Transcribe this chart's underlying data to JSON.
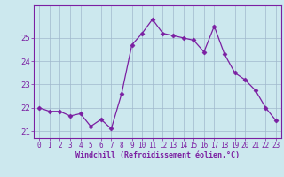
{
  "hours": [
    0,
    1,
    2,
    3,
    4,
    5,
    6,
    7,
    8,
    9,
    10,
    11,
    12,
    13,
    14,
    15,
    16,
    17,
    18,
    19,
    20,
    21,
    22,
    23
  ],
  "values": [
    22.0,
    21.85,
    21.85,
    21.65,
    21.75,
    21.2,
    21.5,
    21.1,
    22.6,
    24.7,
    25.2,
    25.8,
    25.2,
    25.1,
    25.0,
    24.9,
    24.4,
    25.5,
    24.3,
    23.5,
    23.2,
    22.75,
    22.0,
    21.45
  ],
  "line_color": "#7B1FA2",
  "marker": "D",
  "marker_size": 2.5,
  "bg_color": "#cce8ee",
  "grid_color": "#a0b8cc",
  "xlabel": "Windchill (Refroidissement éolien,°C)",
  "xlabel_color": "#7B1FA2",
  "tick_color": "#7B1FA2",
  "ylim": [
    20.7,
    26.4
  ],
  "xlim": [
    -0.5,
    23.5
  ],
  "yticks": [
    21,
    22,
    23,
    24,
    25
  ],
  "xticks": [
    0,
    1,
    2,
    3,
    4,
    5,
    6,
    7,
    8,
    9,
    10,
    11,
    12,
    13,
    14,
    15,
    16,
    17,
    18,
    19,
    20,
    21,
    22,
    23
  ]
}
